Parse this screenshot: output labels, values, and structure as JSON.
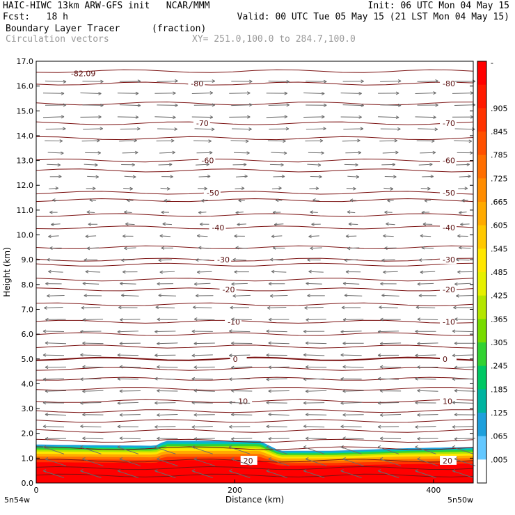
{
  "header": {
    "line1_left": "HAIC-HIWC 13km ARW-GFS init   NCAR/MMM",
    "line1_right": "Init: 06 UTC Mon 04 May 15",
    "line2_left": "Fcst:   18 h",
    "line2_right": "Valid: 00 UTC Tue 05 May 15 (21 LST Mon 04 May 15)",
    "field_name": "Boundary Layer Tracer",
    "field_units": "(fraction)",
    "overlay_name": "Circulation vectors",
    "cross_section": "XY= 251.0,100.0 to 284.7,100.0"
  },
  "chart_data": {
    "type": "heatmap",
    "title": "Boundary Layer Tracer (fraction)",
    "xlabel": "Distance (km)",
    "ylabel": "Height (km)",
    "xlim": [
      0,
      440
    ],
    "ylim": [
      0,
      17
    ],
    "x_ticks": [
      "0",
      "200",
      "400"
    ],
    "x_tick_values": [
      0,
      200,
      400
    ],
    "x_end_labels": {
      "left": "5n54w",
      "right": "5n50w"
    },
    "y_ticks": [
      "0.0",
      "1.0",
      "2.0",
      "3.0",
      "4.0",
      "5.0",
      "6.0",
      "7.0",
      "8.0",
      "9.0",
      "10.0",
      "11.0",
      "12.0",
      "13.0",
      "14.0",
      "15.0",
      "16.0",
      "17.0"
    ],
    "y_tick_values": [
      0,
      1,
      2,
      3,
      4,
      5,
      6,
      7,
      8,
      9,
      10,
      11,
      12,
      13,
      14,
      15,
      16,
      17
    ],
    "colorbar": {
      "labels": [
        "-",
        ".905",
        ".845",
        ".785",
        ".725",
        ".665",
        ".605",
        ".545",
        ".485",
        ".425",
        ".365",
        ".305",
        ".245",
        ".185",
        ".125",
        ".065",
        ".005"
      ],
      "colors": [
        "#ff0000",
        "#ff1a00",
        "#ff3300",
        "#ff5000",
        "#ff6e00",
        "#ff8c00",
        "#ffaa00",
        "#ffc800",
        "#ffe600",
        "#e6f000",
        "#b4e600",
        "#78dc00",
        "#32d232",
        "#00c864",
        "#00b4a0",
        "#1ea0dc",
        "#64c8ff",
        "#ffffff"
      ]
    },
    "boundary_layer_top_km": [
      {
        "x": 0,
        "h": 1.55
      },
      {
        "x": 120,
        "h": 1.5
      },
      {
        "x": 130,
        "h": 1.7
      },
      {
        "x": 225,
        "h": 1.7
      },
      {
        "x": 245,
        "h": 1.3
      },
      {
        "x": 300,
        "h": 1.3
      },
      {
        "x": 370,
        "h": 1.4
      },
      {
        "x": 440,
        "h": 1.45
      }
    ],
    "temperature_contours": [
      {
        "label": "-80",
        "height": 16.1
      },
      {
        "label": "-70",
        "height": 14.5
      },
      {
        "label": "-60",
        "height": 13.0
      },
      {
        "label": "-50",
        "height": 11.7
      },
      {
        "label": "-40",
        "height": 10.3
      },
      {
        "label": "-30",
        "height": 9.0
      },
      {
        "label": "-20",
        "height": 7.8
      },
      {
        "label": "-10",
        "height": 6.5
      },
      {
        "label": "0",
        "height": 5.0
      },
      {
        "label": "10",
        "height": 3.3
      },
      {
        "label": "20",
        "height": 0.9
      }
    ],
    "unlabeled_contours_km": [
      16.6,
      15.3,
      13.9,
      12.6,
      11.4,
      10.8,
      9.5,
      8.8,
      8.2,
      7.2,
      6.0,
      5.5,
      4.6,
      4.2,
      3.8,
      2.9,
      2.5,
      2.1,
      1.7,
      1.4,
      0.6,
      0.3
    ],
    "extremum_label": "-82.09",
    "extremum_at": {
      "x": 35,
      "h": 16.4
    },
    "vectors": {
      "upper_direction": "east",
      "lower_direction": "west",
      "reversal_height_km": 11.5,
      "x_count": 12
    },
    "grid": false,
    "legend": "right"
  }
}
